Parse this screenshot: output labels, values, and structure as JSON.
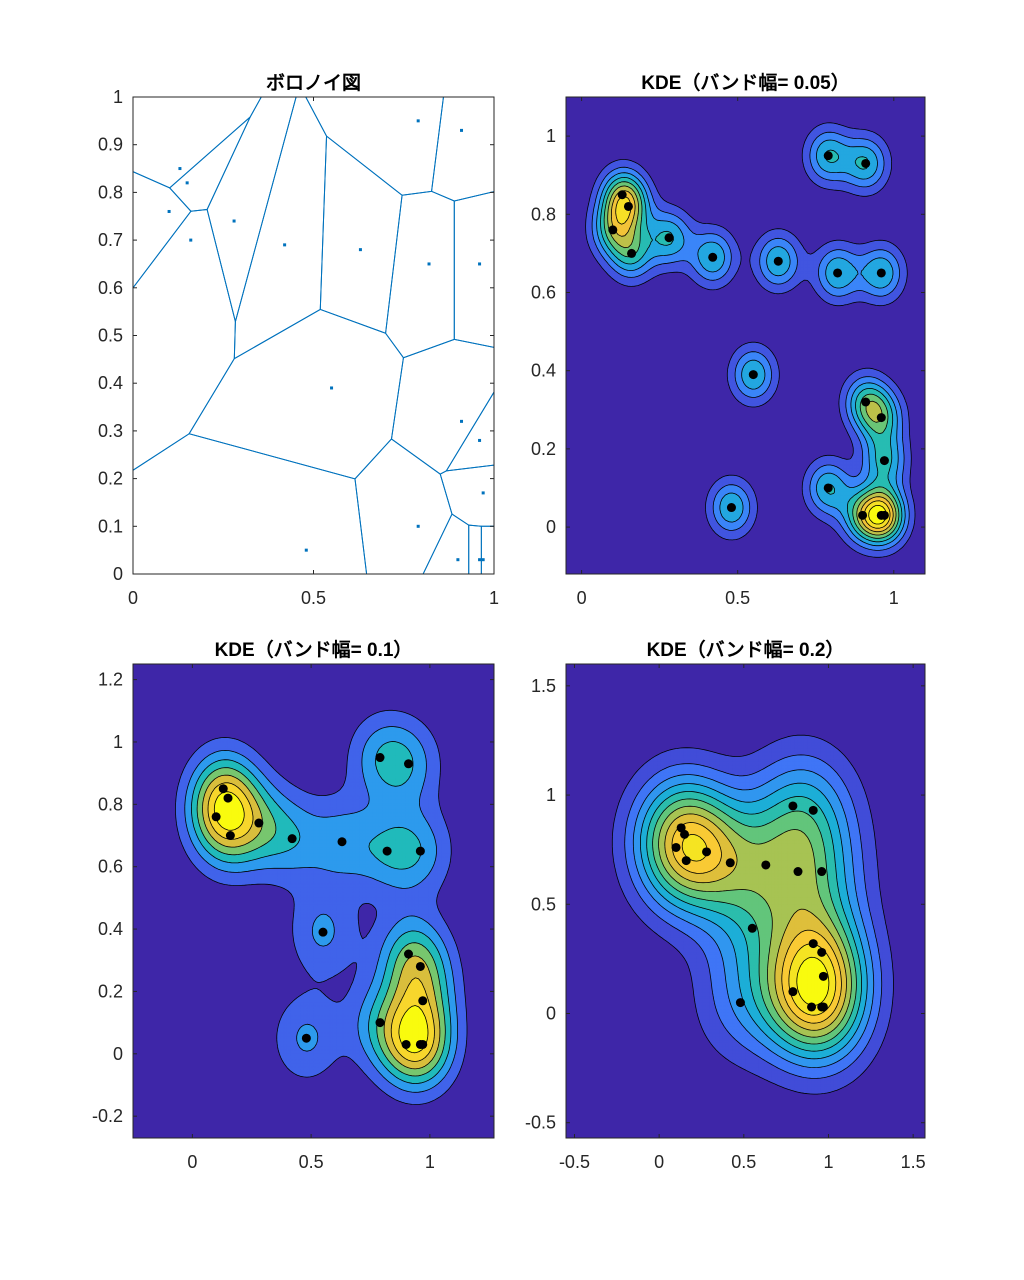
{
  "colors": {
    "voronoi_edge": "#0072BD",
    "point_marker": "#000000",
    "contour_line": "#000000",
    "parula": [
      "#3E26A8",
      "#4150DD",
      "#3F7DFC",
      "#2A9FEA",
      "#14B6CC",
      "#3EC392",
      "#8EC760",
      "#D4BD3D",
      "#FAC537",
      "#F5E224",
      "#F9FB0E"
    ]
  },
  "points": [
    [
      0.1,
      0.76
    ],
    [
      0.13,
      0.85
    ],
    [
      0.15,
      0.82
    ],
    [
      0.16,
      0.7
    ],
    [
      0.28,
      0.74
    ],
    [
      0.42,
      0.69
    ],
    [
      0.55,
      0.39
    ],
    [
      0.63,
      0.68
    ],
    [
      0.79,
      0.95
    ],
    [
      0.82,
      0.65
    ],
    [
      0.91,
      0.93
    ],
    [
      0.96,
      0.65
    ],
    [
      0.91,
      0.32
    ],
    [
      0.96,
      0.28
    ],
    [
      0.97,
      0.17
    ],
    [
      0.79,
      0.1
    ],
    [
      0.9,
      0.03
    ],
    [
      0.96,
      0.03
    ],
    [
      0.97,
      0.03
    ],
    [
      0.48,
      0.05
    ]
  ],
  "chart_data": [
    {
      "type": "voronoi",
      "title": "ボロノイ図",
      "xlim": [
        0,
        1
      ],
      "ylim": [
        0,
        1
      ],
      "xticks": [
        0,
        0.5,
        1
      ],
      "xtick_labels": [
        "0",
        "0.5",
        "1"
      ],
      "yticks": [
        0,
        0.1,
        0.2,
        0.3,
        0.4,
        0.5,
        0.6,
        0.7,
        0.8,
        0.9,
        1
      ],
      "ytick_labels": [
        "0",
        "0.1",
        "0.2",
        "0.3",
        "0.4",
        "0.5",
        "0.6",
        "0.7",
        "0.8",
        "0.9",
        "1"
      ],
      "grid": false
    },
    {
      "type": "contour",
      "title": "KDE（バンド幅= 0.05）",
      "bandwidth": 0.05,
      "xlim": [
        -0.05,
        1.1
      ],
      "ylim": [
        -0.12,
        1.1
      ],
      "levels": 9,
      "xticks": [
        0,
        0.5,
        1
      ],
      "xtick_labels": [
        "0",
        "0.5",
        "1"
      ],
      "yticks": [
        0,
        0.2,
        0.4,
        0.6,
        0.8,
        1
      ],
      "ytick_labels": [
        "0",
        "0.2",
        "0.4",
        "0.6",
        "0.8",
        "1"
      ],
      "grid": false
    },
    {
      "type": "contour",
      "title": "KDE（バンド幅= 0.1）",
      "bandwidth": 0.1,
      "xlim": [
        -0.25,
        1.27
      ],
      "ylim": [
        -0.27,
        1.25
      ],
      "levels": 7,
      "xticks": [
        0,
        0.5,
        1
      ],
      "xtick_labels": [
        "0",
        "0.5",
        "1"
      ],
      "yticks": [
        -0.2,
        0,
        0.2,
        0.4,
        0.6,
        0.8,
        1,
        1.2
      ],
      "ytick_labels": [
        "-0.2",
        "0",
        "0.2",
        "0.4",
        "0.6",
        "0.8",
        "1",
        "1.2"
      ],
      "grid": false
    },
    {
      "type": "contour",
      "title": "KDE（バンド幅= 0.2）",
      "bandwidth": 0.2,
      "xlim": [
        -0.55,
        1.57
      ],
      "ylim": [
        -0.57,
        1.6
      ],
      "levels": 11,
      "xticks": [
        -0.5,
        0,
        0.5,
        1,
        1.5
      ],
      "xtick_labels": [
        "-0.5",
        "0",
        "0.5",
        "1",
        "1.5"
      ],
      "yticks": [
        -0.5,
        0,
        0.5,
        1,
        1.5
      ],
      "ytick_labels": [
        "-0.5",
        "0",
        "0.5",
        "1",
        "1.5"
      ],
      "grid": false
    }
  ]
}
